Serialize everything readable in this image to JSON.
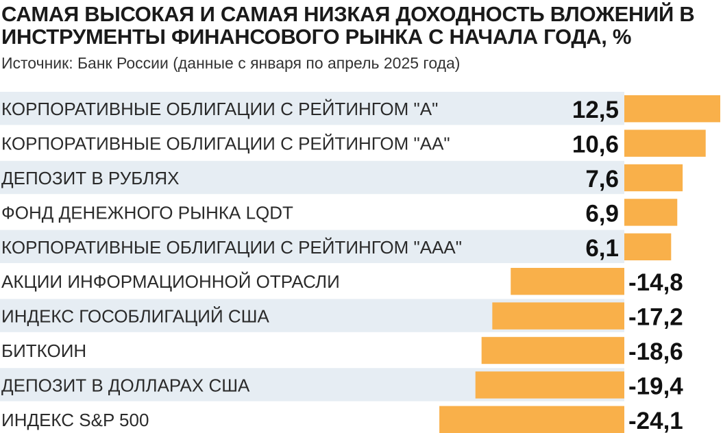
{
  "chart_data": {
    "type": "bar",
    "title": "САМАЯ ВЫСОКАЯ И САМАЯ НИЗКАЯ ДОХОДНОСТЬ ВЛОЖЕНИЙ В ИНСТРУМЕНТЫ ФИНАНСОВОГО РЫНКА С НАЧАЛА ГОДА, %",
    "subtitle": "Источник: Банк России (данные с января по апрель 2025 года)",
    "orientation": "horizontal",
    "categories": [
      "КОРПОРАТИВНЫЕ ОБЛИГАЦИИ С РЕЙТИНГОМ \"А\"",
      "КОРПОРАТИВНЫЕ ОБЛИГАЦИИ С РЕЙТИНГОМ \"АА\"",
      "ДЕПОЗИТ В РУБЛЯХ",
      "ФОНД ДЕНЕЖНОГО РЫНКА LQDT",
      "КОРПОРАТИВНЫЕ ОБЛИГАЦИИ С РЕЙТИНГОМ \"ААА\"",
      "АКЦИИ ИНФОРМАЦИОННОЙ ОТРАСЛИ",
      "ИНДЕКС ГОСОБЛИГАЦИЙ США",
      "БИТКОИН",
      "ДЕПОЗИТ В ДОЛЛАРАХ США",
      "ИНДЕКС S&P 500"
    ],
    "values": [
      12.5,
      10.6,
      7.6,
      6.9,
      6.1,
      -14.8,
      -17.2,
      -18.6,
      -19.4,
      -24.1
    ],
    "value_labels": [
      "12,5",
      "10,6",
      "7,6",
      "6,9",
      "6,1",
      "-14,8",
      "-17,2",
      "-18,6",
      "-19,4",
      "-24,1"
    ],
    "bar_color": "#f9b04a",
    "band_color": "#e6edf3"
  }
}
